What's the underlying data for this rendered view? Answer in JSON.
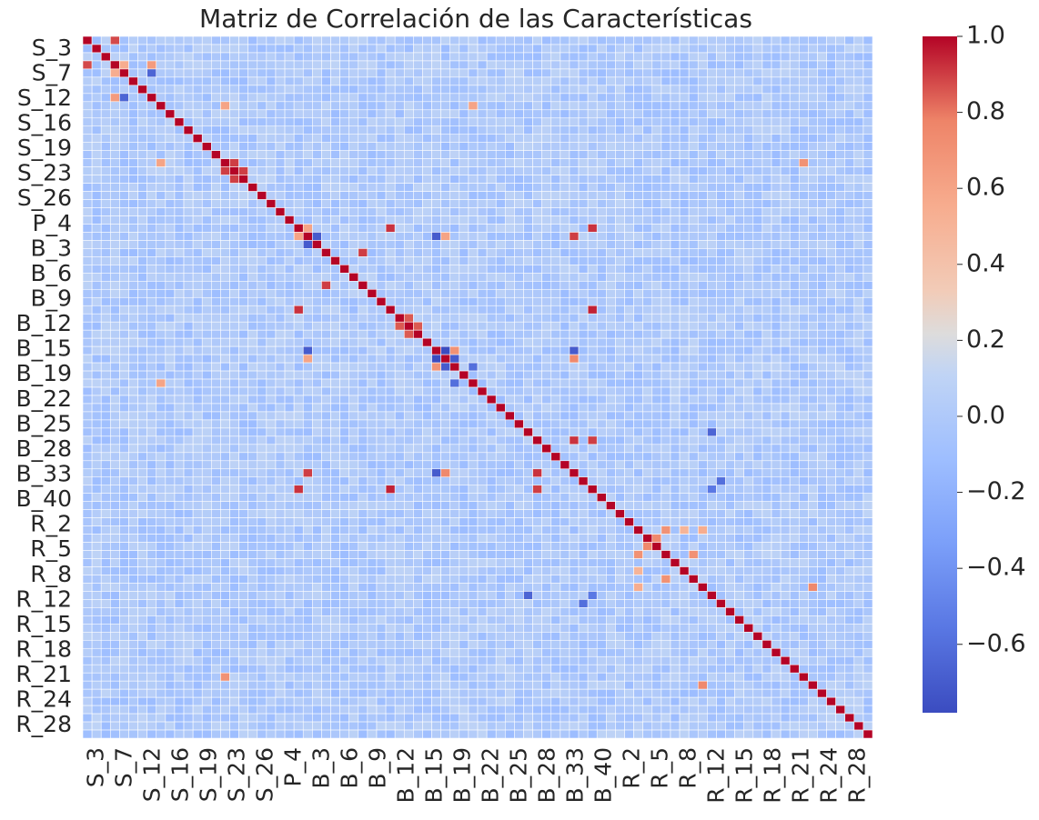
{
  "chart_data": {
    "type": "heatmap",
    "title": "Matriz de Correlación de las Características",
    "y_tick_labels": [
      "S_3",
      "S_7",
      "S_12",
      "S_16",
      "S_19",
      "S_23",
      "S_26",
      "P_4",
      "B_3",
      "B_6",
      "B_9",
      "B_12",
      "B_15",
      "B_19",
      "B_22",
      "B_25",
      "B_28",
      "B_33",
      "B_40",
      "R_2",
      "R_5",
      "R_8",
      "R_12",
      "R_15",
      "R_18",
      "R_21",
      "R_24",
      "R_28"
    ],
    "x_tick_labels": [
      "S_3",
      "S_7",
      "S_12",
      "S_16",
      "S_19",
      "S_23",
      "S_26",
      "P_4",
      "B_3",
      "B_6",
      "B_9",
      "B_12",
      "B_15",
      "B_19",
      "B_22",
      "B_25",
      "B_28",
      "B_33",
      "B_40",
      "R_2",
      "R_5",
      "R_8",
      "R_12",
      "R_15",
      "R_18",
      "R_21",
      "R_24",
      "R_28"
    ],
    "colorbar": {
      "min": -0.78,
      "max": 1.0,
      "ticks": [
        1.0,
        0.8,
        0.6,
        0.4,
        0.2,
        0.0,
        -0.2,
        -0.4,
        -0.6
      ],
      "tick_labels": [
        "1.0",
        "0.8",
        "0.6",
        "0.4",
        "0.2",
        "0.0",
        "−0.2",
        "−0.4",
        "−0.6"
      ]
    },
    "colormap": "coolwarm",
    "matrix_size": 86,
    "diagonal_value": 1.0,
    "approx_strong_cells": [
      {
        "row": 0,
        "col": 3,
        "value": 0.88
      },
      {
        "row": 3,
        "col": 4,
        "value": 0.55
      },
      {
        "row": 4,
        "col": 7,
        "value": -0.65
      },
      {
        "row": 3,
        "col": 7,
        "value": 0.65
      },
      {
        "row": 8,
        "col": 15,
        "value": 0.6
      },
      {
        "row": 8,
        "col": 42,
        "value": 0.6
      },
      {
        "row": 15,
        "col": 78,
        "value": 0.7
      },
      {
        "row": 17,
        "col": 16,
        "value": 0.9
      },
      {
        "row": 16,
        "col": 15,
        "value": 0.9
      },
      {
        "row": 23,
        "col": 33,
        "value": 0.92
      },
      {
        "row": 23,
        "col": 55,
        "value": 0.92
      },
      {
        "row": 23,
        "col": 24,
        "value": 0.6
      },
      {
        "row": 24,
        "col": 25,
        "value": -0.7
      },
      {
        "row": 24,
        "col": 38,
        "value": -0.7
      },
      {
        "row": 24,
        "col": 39,
        "value": 0.6
      },
      {
        "row": 24,
        "col": 53,
        "value": 0.9
      },
      {
        "row": 25,
        "col": 24,
        "value": -0.7
      },
      {
        "row": 33,
        "col": 55,
        "value": 0.95
      },
      {
        "row": 34,
        "col": 35,
        "value": 0.85
      },
      {
        "row": 35,
        "col": 36,
        "value": 0.85
      },
      {
        "row": 38,
        "col": 39,
        "value": -0.78
      },
      {
        "row": 38,
        "col": 40,
        "value": 0.7
      },
      {
        "row": 38,
        "col": 53,
        "value": -0.7
      },
      {
        "row": 39,
        "col": 40,
        "value": -0.7
      },
      {
        "row": 39,
        "col": 53,
        "value": 0.75
      },
      {
        "row": 40,
        "col": 42,
        "value": -0.6
      },
      {
        "row": 26,
        "col": 30,
        "value": 0.9
      },
      {
        "row": 49,
        "col": 53,
        "value": 0.92
      },
      {
        "row": 49,
        "col": 55,
        "value": 0.9
      },
      {
        "row": 60,
        "col": 63,
        "value": 0.7
      },
      {
        "row": 60,
        "col": 65,
        "value": 0.5
      },
      {
        "row": 61,
        "col": 62,
        "value": 0.75
      },
      {
        "row": 63,
        "col": 66,
        "value": 0.7
      },
      {
        "row": 67,
        "col": 60,
        "value": 0.55
      },
      {
        "row": 68,
        "col": 48,
        "value": -0.65
      },
      {
        "row": 68,
        "col": 55,
        "value": -0.55
      },
      {
        "row": 54,
        "col": 69,
        "value": -0.6
      },
      {
        "row": 79,
        "col": 67,
        "value": 0.75
      }
    ]
  }
}
